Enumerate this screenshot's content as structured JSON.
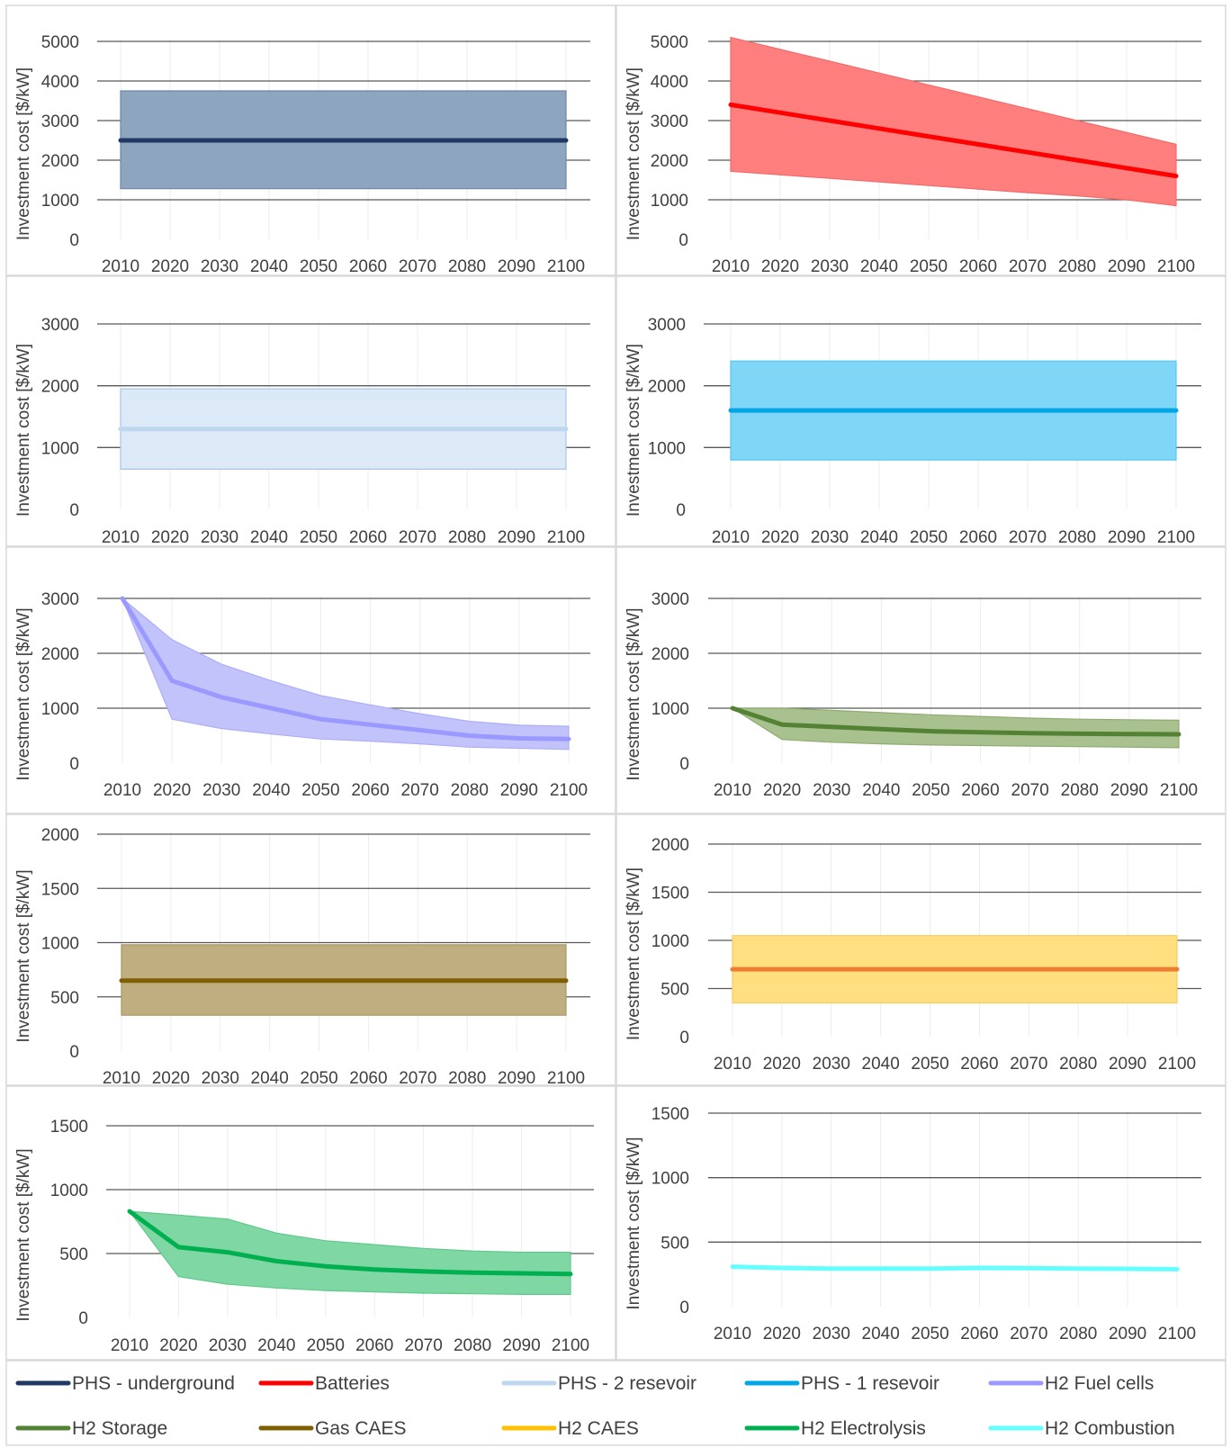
{
  "chart_data": [
    {
      "type": "area",
      "ylabel": "Investment cost [$/kW]",
      "x": [
        2010,
        2020,
        2030,
        2040,
        2050,
        2060,
        2070,
        2080,
        2090,
        2100
      ],
      "ylim": [
        0,
        5000
      ],
      "yticks": [
        0,
        1000,
        2000,
        3000,
        4000,
        5000
      ],
      "series": [
        {
          "name": "PHS - underground",
          "values": [
            2500,
            2500,
            2500,
            2500,
            2500,
            2500,
            2500,
            2500,
            2500,
            2500
          ]
        }
      ],
      "band": {
        "low": [
          1280,
          1280,
          1280,
          1280,
          1280,
          1280,
          1280,
          1280,
          1280,
          1280
        ],
        "high": [
          3750,
          3750,
          3750,
          3750,
          3750,
          3750,
          3750,
          3750,
          3750,
          3750
        ]
      },
      "line_color": "#1f3864",
      "band_color": "#8ea5bf",
      "band_edge": "#6f87a4"
    },
    {
      "type": "area",
      "ylabel": "Investment cost [$/kW]",
      "x": [
        2010,
        2020,
        2030,
        2040,
        2050,
        2060,
        2070,
        2080,
        2090,
        2100
      ],
      "ylim": [
        0,
        5000
      ],
      "yticks": [
        0,
        1000,
        2000,
        3000,
        4000,
        5000
      ],
      "series": [
        {
          "name": "Batteries",
          "values": [
            3400,
            3200,
            3000,
            2800,
            2600,
            2400,
            2200,
            2000,
            1800,
            1600
          ]
        }
      ],
      "band": {
        "low": [
          1720,
          1630,
          1540,
          1450,
          1360,
          1270,
          1180,
          1100,
          1000,
          850
        ],
        "high": [
          5100,
          4800,
          4500,
          4200,
          3900,
          3600,
          3300,
          3000,
          2700,
          2400
        ]
      },
      "line_color": "#ff0000",
      "band_color": "#ff7f7f",
      "band_edge": "#f06b6b"
    },
    {
      "type": "area",
      "ylabel": "Investment cost [$/kW]",
      "x": [
        2010,
        2020,
        2030,
        2040,
        2050,
        2060,
        2070,
        2080,
        2090,
        2100
      ],
      "ylim": [
        0,
        3000
      ],
      "yticks": [
        0,
        1000,
        2000,
        3000
      ],
      "series": [
        {
          "name": "PHS - 2 resevoir",
          "values": [
            1300,
            1300,
            1300,
            1300,
            1300,
            1300,
            1300,
            1300,
            1300,
            1300
          ]
        }
      ],
      "band": {
        "low": [
          650,
          650,
          650,
          650,
          650,
          650,
          650,
          650,
          650,
          650
        ],
        "high": [
          1950,
          1950,
          1950,
          1950,
          1950,
          1950,
          1950,
          1950,
          1950,
          1950
        ]
      },
      "line_color": "#bdd7ee",
      "band_color": "#dce9f6",
      "band_edge": "#a9c7e5"
    },
    {
      "type": "area",
      "ylabel": "Investment cost [$/kW]",
      "x": [
        2010,
        2020,
        2030,
        2040,
        2050,
        2060,
        2070,
        2080,
        2090,
        2100
      ],
      "ylim": [
        0,
        3000
      ],
      "yticks": [
        0,
        1000,
        2000,
        3000
      ],
      "series": [
        {
          "name": "PHS - 1 resevoir",
          "values": [
            1600,
            1600,
            1600,
            1600,
            1600,
            1600,
            1600,
            1600,
            1600,
            1600
          ]
        }
      ],
      "band": {
        "low": [
          800,
          800,
          800,
          800,
          800,
          800,
          800,
          800,
          800,
          800
        ],
        "high": [
          2400,
          2400,
          2400,
          2400,
          2400,
          2400,
          2400,
          2400,
          2400,
          2400
        ]
      },
      "line_color": "#00a6e6",
      "band_color": "#7fd6f7",
      "band_edge": "#58c5ef"
    },
    {
      "type": "area",
      "ylabel": "Investment cost [$/kW]",
      "x": [
        2010,
        2020,
        2030,
        2040,
        2050,
        2060,
        2070,
        2080,
        2090,
        2100
      ],
      "ylim": [
        0,
        3000
      ],
      "yticks": [
        0,
        1000,
        2000,
        3000
      ],
      "series": [
        {
          "name": "H2 Fuel cells",
          "values": [
            3000,
            1500,
            1200,
            1000,
            800,
            700,
            600,
            500,
            450,
            440
          ]
        }
      ],
      "band": {
        "low": [
          3000,
          800,
          630,
          530,
          440,
          400,
          350,
          290,
          270,
          250
        ],
        "high": [
          3000,
          2250,
          1800,
          1500,
          1230,
          1060,
          900,
          760,
          690,
          670
        ]
      },
      "line_color": "#9999ff",
      "band_color": "#c3c3fb",
      "band_edge": "#aeaef7"
    },
    {
      "type": "area",
      "ylabel": "Investment cost [$/kW]",
      "x": [
        2010,
        2020,
        2030,
        2040,
        2050,
        2060,
        2070,
        2080,
        2090,
        2100
      ],
      "ylim": [
        0,
        3000
      ],
      "yticks": [
        0,
        1000,
        2000,
        3000
      ],
      "series": [
        {
          "name": "H2 Storage",
          "values": [
            1000,
            700,
            660,
            620,
            580,
            560,
            545,
            535,
            530,
            525
          ]
        }
      ],
      "band": {
        "low": [
          1000,
          430,
          380,
          350,
          330,
          320,
          310,
          300,
          290,
          280
        ],
        "high": [
          1000,
          1000,
          960,
          920,
          880,
          850,
          820,
          800,
          790,
          780
        ]
      },
      "line_color": "#548235",
      "band_color": "#a9c08f",
      "band_edge": "#8fac72"
    },
    {
      "type": "area",
      "ylabel": "Investment cost [$/kW]",
      "x": [
        2010,
        2020,
        2030,
        2040,
        2050,
        2060,
        2070,
        2080,
        2090,
        2100
      ],
      "ylim": [
        0,
        2000
      ],
      "yticks": [
        0,
        500,
        1000,
        1500,
        2000
      ],
      "series": [
        {
          "name": "Gas CAES",
          "values": [
            650,
            650,
            650,
            650,
            650,
            650,
            650,
            650,
            650,
            650
          ]
        }
      ],
      "band": {
        "low": [
          330,
          330,
          330,
          330,
          330,
          330,
          330,
          330,
          330,
          330
        ],
        "high": [
          980,
          980,
          980,
          980,
          980,
          980,
          980,
          980,
          980,
          980
        ]
      },
      "line_color": "#7f6000",
      "band_color": "#bfae7f",
      "band_edge": "#a8975f"
    },
    {
      "type": "area",
      "ylabel": "Investment cost [$/kW]",
      "x": [
        2010,
        2020,
        2030,
        2040,
        2050,
        2060,
        2070,
        2080,
        2090,
        2100
      ],
      "ylim": [
        0,
        2000
      ],
      "yticks": [
        0,
        500,
        1000,
        1500,
        2000
      ],
      "series": [
        {
          "name": "H2 CAES",
          "values": [
            700,
            700,
            700,
            700,
            700,
            700,
            700,
            700,
            700,
            700
          ]
        }
      ],
      "band": {
        "low": [
          350,
          350,
          350,
          350,
          350,
          350,
          350,
          350,
          350,
          350
        ],
        "high": [
          1050,
          1050,
          1050,
          1050,
          1050,
          1050,
          1050,
          1050,
          1050,
          1050
        ]
      },
      "line_color": "#ed7d31",
      "band_color": "#ffdf80",
      "band_edge": "#f5cc5e"
    },
    {
      "type": "area",
      "ylabel": "Investment cost [$/kW]",
      "x": [
        2010,
        2020,
        2030,
        2040,
        2050,
        2060,
        2070,
        2080,
        2090,
        2100
      ],
      "ylim": [
        0,
        1500
      ],
      "yticks": [
        0,
        500,
        1000,
        1500
      ],
      "series": [
        {
          "name": "H2 Electrolysis",
          "values": [
            830,
            550,
            510,
            440,
            400,
            375,
            360,
            350,
            345,
            340
          ]
        }
      ],
      "band": {
        "low": [
          830,
          320,
          260,
          230,
          210,
          200,
          190,
          185,
          180,
          180
        ],
        "high": [
          830,
          800,
          770,
          660,
          600,
          570,
          540,
          520,
          510,
          510
        ]
      },
      "line_color": "#00b050",
      "band_color": "#7fd7a4",
      "band_edge": "#5fc98b"
    },
    {
      "type": "line",
      "ylabel": "Investment cost [$/kW]",
      "x": [
        2010,
        2020,
        2030,
        2040,
        2050,
        2060,
        2070,
        2080,
        2090,
        2100
      ],
      "ylim": [
        0,
        1500
      ],
      "yticks": [
        0,
        500,
        1000,
        1500
      ],
      "series": [
        {
          "name": "H2 Combustion",
          "values": [
            310,
            300,
            295,
            295,
            295,
            300,
            298,
            295,
            293,
            290
          ]
        }
      ],
      "band": null,
      "line_color": "#66ffff",
      "band_color": "",
      "band_edge": ""
    }
  ],
  "legend": {
    "items": [
      {
        "label": "PHS - underground",
        "color": "#1f3864"
      },
      {
        "label": "Batteries",
        "color": "#ff0000"
      },
      {
        "label": "PHS - 2 resevoir",
        "color": "#bdd7ee"
      },
      {
        "label": "PHS - 1 resevoir",
        "color": "#00a6e6"
      },
      {
        "label": "H2 Fuel cells",
        "color": "#9999ff"
      },
      {
        "label": "H2 Storage",
        "color": "#548235"
      },
      {
        "label": "Gas CAES",
        "color": "#7f6000"
      },
      {
        "label": "H2 CAES",
        "color": "#ffc000"
      },
      {
        "label": "H2 Electrolysis",
        "color": "#00b050"
      },
      {
        "label": "H2 Combustion",
        "color": "#66ffff"
      }
    ]
  }
}
